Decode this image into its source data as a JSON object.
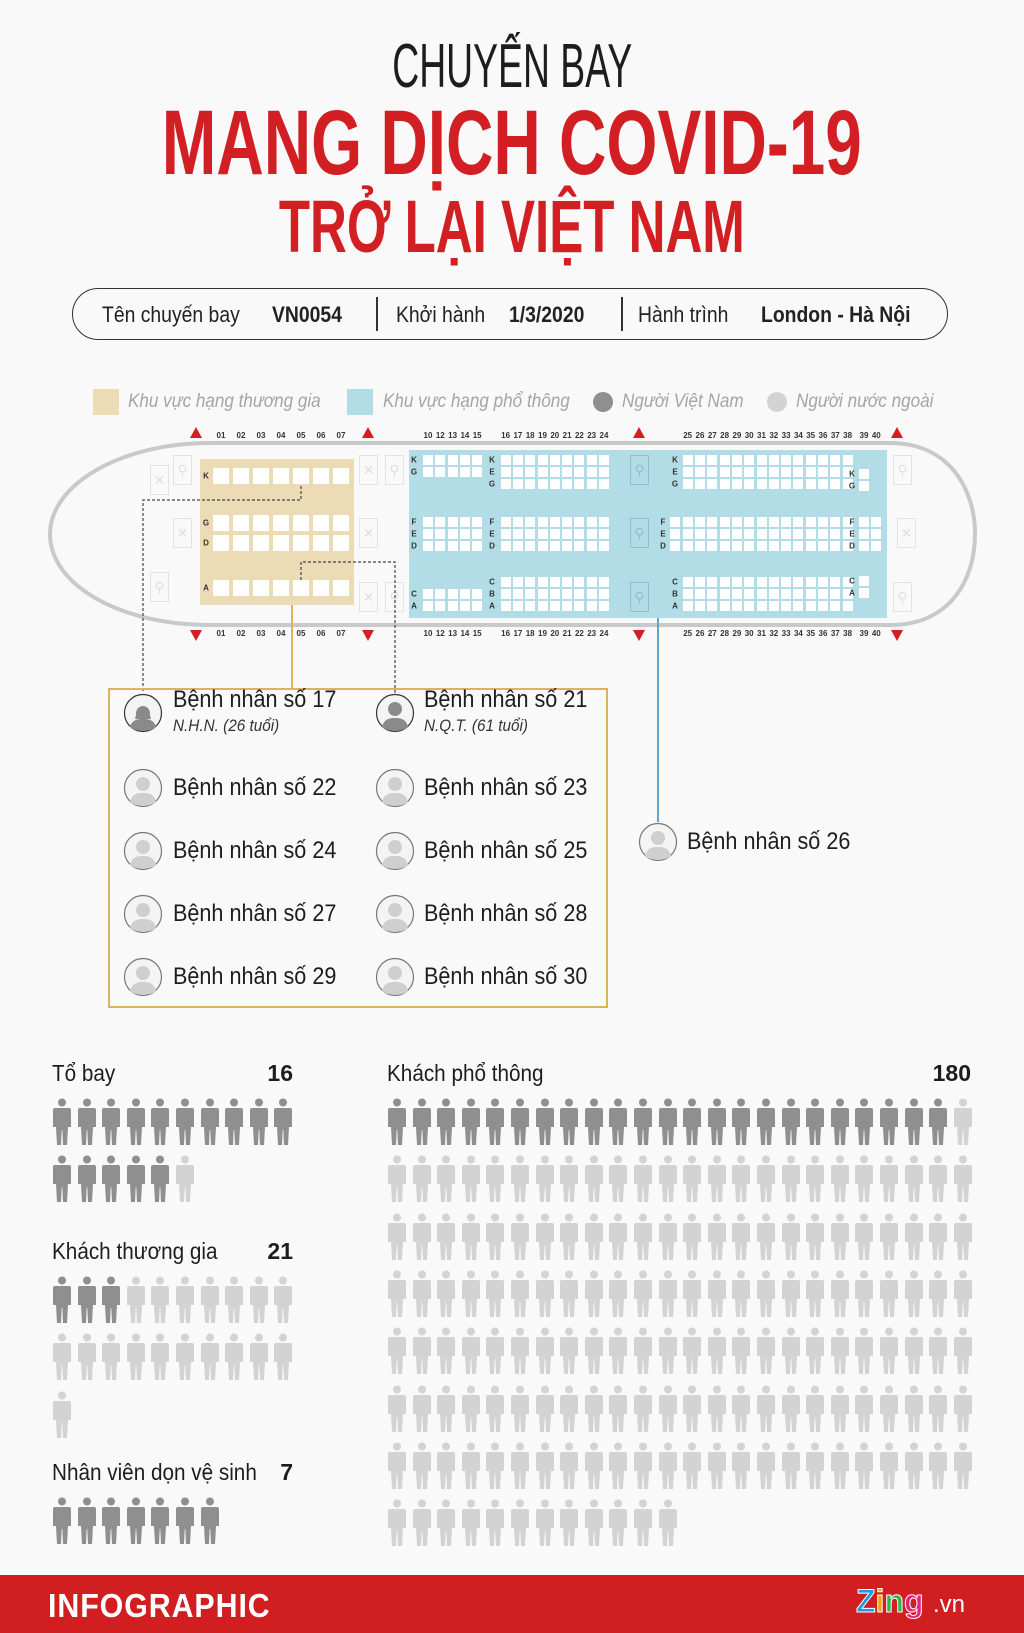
{
  "title": {
    "line1": "CHUYẾN BAY",
    "line2": "MANG DỊCH COVID-19",
    "line3": "TRỞ LẠI VIỆT NAM"
  },
  "flight_info": {
    "name_label": "Tên chuyến bay",
    "name_value": "VN0054",
    "departure_label": "Khởi hành",
    "departure_value": "1/3/2020",
    "route_label": "Hành trình",
    "route_value": "London - Hà Nội"
  },
  "legend": [
    {
      "label": "Khu vực hạng thương gia",
      "color": "#ecdcb5"
    },
    {
      "label": "Khu vực hạng phổ thông",
      "color": "#b2dce6"
    },
    {
      "label": "Người Việt Nam",
      "color": "#8f8f8f"
    },
    {
      "label": "Người nước ngoài",
      "color": "#d3d3d3"
    }
  ],
  "seat_map": {
    "business": {
      "color": "#ecdcb5",
      "columns": [
        "01",
        "02",
        "03",
        "04",
        "05",
        "06",
        "07"
      ],
      "rows": [
        "K",
        "G",
        "D",
        "A"
      ]
    },
    "economy": {
      "color": "#b2dce6",
      "column_groups": [
        [
          "10",
          "12",
          "13",
          "14",
          "15"
        ],
        [
          "16",
          "17",
          "18",
          "19",
          "20",
          "21",
          "22",
          "23",
          "24"
        ],
        [
          "25",
          "26",
          "27",
          "28",
          "29",
          "30",
          "31",
          "32",
          "33",
          "34",
          "35",
          "36",
          "37",
          "38"
        ],
        [
          "39",
          "40"
        ]
      ],
      "segments": [
        [
          "K",
          "G"
        ],
        [
          "F",
          "E",
          "D"
        ],
        [
          "C",
          "A"
        ],
        [
          "K",
          "E",
          "G"
        ],
        [
          "F",
          "E",
          "D"
        ],
        [
          "C",
          "B",
          "A"
        ],
        [
          "K",
          "E",
          "G"
        ],
        [
          "F",
          "E",
          "D"
        ],
        [
          "C",
          "B",
          "A"
        ],
        [
          "K",
          "G"
        ],
        [
          "F",
          "E",
          "D"
        ],
        [
          "C",
          "A"
        ]
      ]
    },
    "exit_marker_color": "#d21f24"
  },
  "patients": [
    {
      "name": "Bệnh nhân số 17",
      "detail": "N.H.N. (26 tuổi)",
      "icon": "female-avatar-icon"
    },
    {
      "name": "Bệnh nhân số 21",
      "detail": "N.Q.T. (61 tuổi)",
      "icon": "male-avatar-icon"
    },
    {
      "name": "Bệnh nhân số 22",
      "icon": "person-avatar-icon"
    },
    {
      "name": "Bệnh nhân số 23",
      "icon": "person-avatar-icon"
    },
    {
      "name": "Bệnh nhân số 24",
      "icon": "person-avatar-icon"
    },
    {
      "name": "Bệnh nhân số 25",
      "icon": "person-avatar-icon"
    },
    {
      "name": "Bệnh nhân số 27",
      "icon": "person-avatar-icon"
    },
    {
      "name": "Bệnh nhân số 28",
      "icon": "person-avatar-icon"
    },
    {
      "name": "Bệnh nhân số 29",
      "icon": "person-avatar-icon"
    },
    {
      "name": "Bệnh nhân số 30",
      "icon": "person-avatar-icon"
    }
  ],
  "economy_patient": {
    "name": "Bệnh nhân số 26",
    "icon": "person-avatar-icon"
  },
  "stats": {
    "vietnamese_color": "#8f8f8f",
    "foreign_color": "#d3d3d3",
    "groups": [
      {
        "label": "Tổ bay",
        "total": 16,
        "vietnamese": 15
      },
      {
        "label": "Khách thương gia",
        "total": 21,
        "vietnamese": 3
      },
      {
        "label": "Nhân viên dọn vệ sinh",
        "total": 7,
        "vietnamese": 7
      },
      {
        "label": "Khách phổ thông",
        "total": 180,
        "vietnamese": 23
      }
    ]
  },
  "footer": {
    "label": "INFOGRAPHIC",
    "brand": "Zing",
    "brand_suffix": ".vn"
  }
}
